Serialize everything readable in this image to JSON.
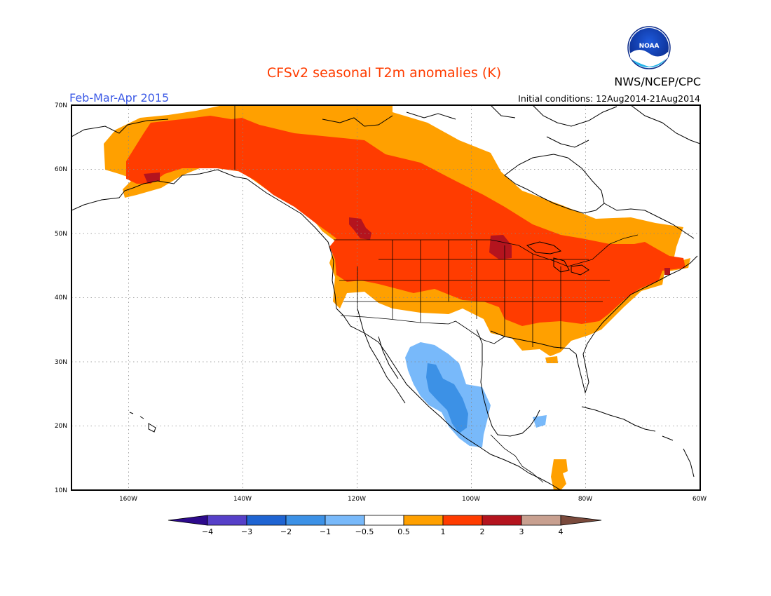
{
  "title": "CFSv2 seasonal T2m anomalies (K)",
  "season": "Feb-Mar-Apr 2015",
  "agency": "NWS/NCEP/CPC",
  "logo_text": "NOAA",
  "init_conditions": "Initial conditions: 12Aug2014-21Aug2014",
  "lat_labels": [
    "70N",
    "60N",
    "50N",
    "40N",
    "30N",
    "20N",
    "10N"
  ],
  "lon_labels": [
    "160W",
    "140W",
    "120W",
    "100W",
    "80W",
    "60W"
  ],
  "colorbar": {
    "colors": [
      "#2d0a8c",
      "#5640c8",
      "#1f64d2",
      "#3c91e6",
      "#78b9fa",
      "#ffffff",
      "#ffa000",
      "#ff3c00",
      "#b4141e",
      "#c8a090",
      "#7a4a3c"
    ],
    "ticks": [
      "-4",
      "-3",
      "-2",
      "-1",
      "-0.5",
      "0.5",
      "1",
      "2",
      "3",
      "4"
    ]
  },
  "colors": {
    "title": "#ff3c00",
    "season": "#3c5ae6",
    "agency": "#000000"
  }
}
